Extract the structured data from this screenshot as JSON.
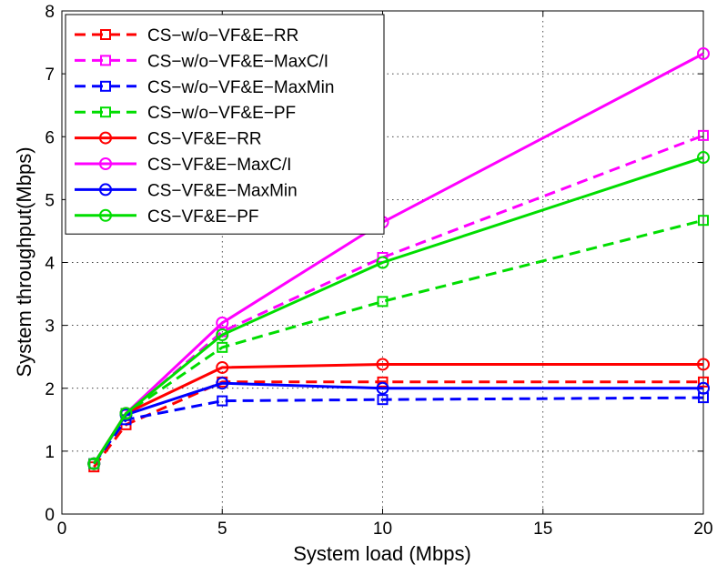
{
  "chart_data": {
    "type": "line",
    "xlabel": "System load (Mbps)",
    "ylabel": "System throughput(Mbps)",
    "xlim": [
      0,
      20
    ],
    "ylim": [
      0,
      8
    ],
    "xticks": [
      "0",
      "5",
      "10",
      "15",
      "20"
    ],
    "yticks": [
      "0",
      "1",
      "2",
      "3",
      "4",
      "5",
      "6",
      "7",
      "8"
    ],
    "grid": true,
    "legend_position": "top-left",
    "x": [
      1,
      2,
      5,
      10,
      20
    ],
    "series": [
      {
        "name": "CS−w/o−VF&E−RR",
        "color": "#ff0000",
        "style": "dashed",
        "marker": "square",
        "values": [
          0.75,
          1.42,
          2.1,
          2.1,
          2.1
        ]
      },
      {
        "name": "CS−w/o−VF&E−MaxC/I",
        "color": "#ff00ff",
        "style": "dashed",
        "marker": "square",
        "values": [
          0.8,
          1.58,
          2.9,
          4.08,
          6.02
        ]
      },
      {
        "name": "CS−w/o−VF&E−MaxMin",
        "color": "#0000ff",
        "style": "dashed",
        "marker": "square",
        "values": [
          0.8,
          1.5,
          1.8,
          1.82,
          1.85
        ]
      },
      {
        "name": "CS−w/o−VF&E−PF",
        "color": "#00dd00",
        "style": "dashed",
        "marker": "square",
        "values": [
          0.8,
          1.6,
          2.65,
          3.38,
          4.67
        ]
      },
      {
        "name": "CS−VF&E−RR",
        "color": "#ff0000",
        "style": "solid",
        "marker": "circle",
        "values": [
          0.8,
          1.6,
          2.33,
          2.38,
          2.38
        ]
      },
      {
        "name": "CS−VF&E−MaxC/I",
        "color": "#ff00ff",
        "style": "solid",
        "marker": "circle",
        "values": [
          0.8,
          1.6,
          3.04,
          4.64,
          7.32
        ]
      },
      {
        "name": "CS−VF&E−MaxMin",
        "color": "#0000ff",
        "style": "solid",
        "marker": "circle",
        "values": [
          0.8,
          1.58,
          2.08,
          2.0,
          2.0
        ]
      },
      {
        "name": "CS−VF&E−PF",
        "color": "#00dd00",
        "style": "solid",
        "marker": "circle",
        "values": [
          0.8,
          1.6,
          2.85,
          4.0,
          5.67
        ]
      }
    ]
  }
}
